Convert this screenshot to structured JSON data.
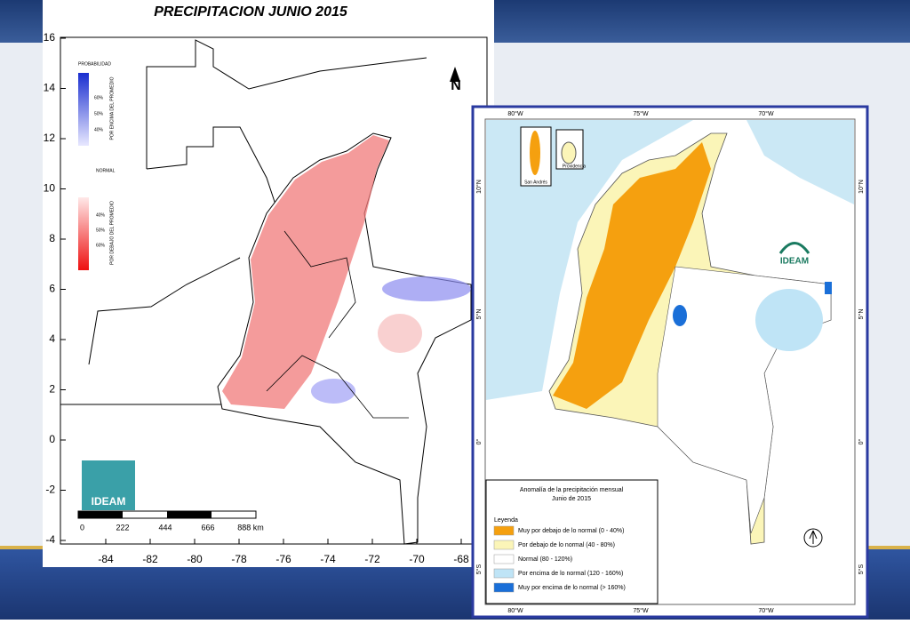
{
  "left_map": {
    "title": "PRECIPITACION JUNIO 2015",
    "xticks": [
      -84,
      -82,
      -80,
      -78,
      -76,
      -74,
      -72,
      -70,
      -68
    ],
    "yticks": [
      16,
      14,
      12,
      10,
      8,
      6,
      4,
      2,
      0,
      -2,
      -4
    ],
    "legend": {
      "above_title": "PROBABILIDAD",
      "above_levels": [
        "60%",
        "50%",
        "40%"
      ],
      "above_label": "POR ENCIMA DEL PROMEDIO",
      "normal": "NORMAL",
      "below_levels": [
        "40%",
        "50%",
        "60%"
      ],
      "below_label": "POR DEBAJO DEL PROMEDIO"
    },
    "north": "N",
    "logo": "IDEAM",
    "scale": [
      "0",
      "222",
      "444",
      "666",
      "888 km"
    ]
  },
  "right_map": {
    "top_ticks": [
      "80°W",
      "75°W",
      "70°W"
    ],
    "side_ticks": [
      "10°N",
      "5°N",
      "0°",
      "5°S"
    ],
    "insets": [
      "San Andrés",
      "Providencia"
    ],
    "legend": {
      "title": "Anomalía de la precipitación mensual",
      "subtitle": "Junio de 2015",
      "heading": "Leyenda",
      "items": [
        {
          "label": "Muy por debajo de lo normal (0 - 40%)",
          "color": "#f5a00f"
        },
        {
          "label": "Por debajo de lo normal (40 - 80%)",
          "color": "#fbf5b8"
        },
        {
          "label": "Normal (80 - 120%)",
          "color": "#ffffff"
        },
        {
          "label": "Por encima de lo normal (120 - 160%)",
          "color": "#bfe4f6"
        },
        {
          "label": "Muy por encima de lo normal (> 160%)",
          "color": "#1a6fd8"
        }
      ]
    },
    "logo": "IDEAM"
  }
}
